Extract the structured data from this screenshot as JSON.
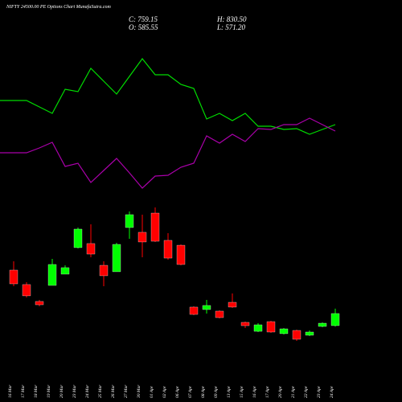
{
  "chart_data": {
    "type": "candlestick",
    "title": "NIFTY 24500.00  PE Options  Chart MunafaSutra.com",
    "ohlc_text": {
      "close": "C: 759.15",
      "high": "H: 830.50",
      "open": "O: 585.55",
      "low": "L: 571.20"
    },
    "categories": [
      "16 Mar",
      "17 Mar",
      "18 Mar",
      "19 Mar",
      "20 Mar",
      "23 Mar",
      "24 Mar",
      "25 Mar",
      "26 Mar",
      "27 Mar",
      "30 Mar",
      "01 Apr",
      "02 Apr",
      "06 Apr",
      "07 Apr",
      "08 Apr",
      "09 Apr",
      "13 Apr",
      "15 Apr",
      "16 Apr",
      "17 Apr",
      "20 Apr",
      "21 Apr",
      "22 Apr",
      "23 Apr",
      "24 Apr"
    ],
    "open": [
      1384,
      1176,
      933,
      1164,
      1326,
      1708,
      1766,
      1453,
      1361,
      1997,
      1928,
      2205,
      1812,
      1742,
      852,
      817,
      794,
      921,
      632,
      504,
      643,
      470,
      516,
      447,
      574,
      585.55
    ],
    "close": [
      1187,
      1014,
      886,
      1465,
      1419,
      1974,
      1615,
      1303,
      1754,
      2182,
      1789,
      1800,
      1557,
      1465,
      747,
      875,
      701,
      852,
      585,
      597,
      493,
      539,
      389,
      493,
      620,
      759.15
    ],
    "high": [
      1511,
      1210,
      956,
      1546,
      1453,
      1997,
      2043,
      1511,
      1777,
      2228,
      2182,
      2286,
      1916,
      1754,
      863,
      956,
      805,
      1048,
      643,
      620,
      655,
      551,
      528,
      516,
      632,
      830.5
    ],
    "low": [
      1152,
      990,
      863,
      1164,
      1326,
      1696,
      1569,
      1152,
      1361,
      1835,
      1569,
      1789,
      1534,
      1453,
      736,
      759,
      690,
      840,
      551,
      493,
      481,
      458,
      366,
      435,
      562,
      571.2
    ],
    "up_color": "#00ff00",
    "down_color": "#ff0000",
    "ylim": [
      0,
      3000
    ],
    "series": [
      {
        "color": "#00dd00",
        "axis": "y2",
        "values": [
          375,
          375,
          367,
          359,
          389,
          386,
          415,
          399,
          383,
          405,
          427,
          407,
          407,
          395,
          390,
          352,
          359,
          350,
          359,
          343,
          343,
          339,
          340,
          333,
          339,
          345
        ]
      },
      {
        "color": "#aa00aa",
        "axis": "y2",
        "values": [
          310,
          310,
          316,
          323,
          293,
          297,
          273,
          288,
          303,
          285,
          266,
          281,
          282,
          292,
          297,
          331,
          322,
          333,
          324,
          340,
          339,
          345,
          345,
          353,
          345,
          337
        ]
      }
    ],
    "y2lim": [
      0,
      500
    ]
  }
}
